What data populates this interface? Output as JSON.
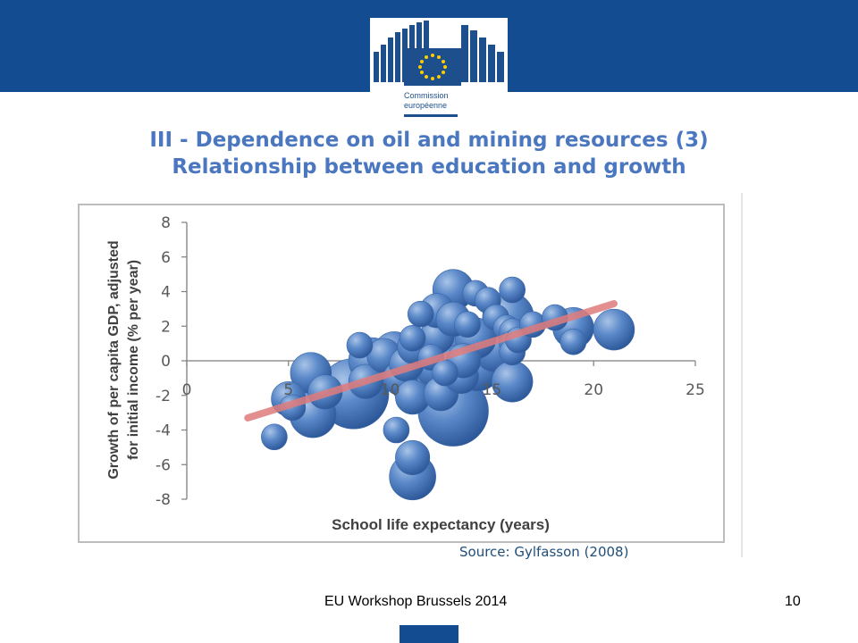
{
  "header": {
    "brand_color": "#134c91",
    "logo": {
      "line1": "Commission",
      "line2": "européenne"
    }
  },
  "title": {
    "line1": "III - Dependence on oil and mining resources (3)",
    "line2": "Relationship between education and growth"
  },
  "chart_data": {
    "type": "scatter",
    "xlabel": "School life expectancy (years)",
    "ylabel": "Growth of per capita GDP, adjusted for initial income (% per year)",
    "xlim": [
      0,
      25
    ],
    "ylim": [
      -8,
      8
    ],
    "x_ticks": [
      0,
      5,
      10,
      15,
      20,
      25
    ],
    "y_ticks": [
      8,
      6,
      4,
      2,
      0,
      -2,
      -4,
      -6,
      -8
    ],
    "grid": false,
    "bubble_color": "#4f81bd",
    "trendline": {
      "color": "#e07c7c",
      "x": [
        3,
        21
      ],
      "y": [
        -3.3,
        3.3
      ]
    },
    "points": [
      {
        "x": 4.3,
        "y": -4.4,
        "size": 1
      },
      {
        "x": 5,
        "y": -2.2,
        "size": 2
      },
      {
        "x": 5.2,
        "y": -2.7,
        "size": 1
      },
      {
        "x": 6.1,
        "y": -0.7,
        "size": 3
      },
      {
        "x": 6.2,
        "y": -3.1,
        "size": 4
      },
      {
        "x": 6.8,
        "y": -1.8,
        "size": 2
      },
      {
        "x": 8.2,
        "y": -1.9,
        "size": 10
      },
      {
        "x": 8.5,
        "y": 0.9,
        "size": 1
      },
      {
        "x": 8.8,
        "y": -1.2,
        "size": 2
      },
      {
        "x": 9.1,
        "y": 0,
        "size": 4
      },
      {
        "x": 9.7,
        "y": 0.3,
        "size": 2
      },
      {
        "x": 10,
        "y": -0.5,
        "size": 3
      },
      {
        "x": 10.2,
        "y": 0.5,
        "size": 3
      },
      {
        "x": 10.3,
        "y": -4,
        "size": 1
      },
      {
        "x": 10.5,
        "y": -1,
        "size": 2
      },
      {
        "x": 10.8,
        "y": -0.2,
        "size": 2
      },
      {
        "x": 11.2,
        "y": -1.3,
        "size": 4
      },
      {
        "x": 11.2,
        "y": 0.8,
        "size": 2
      },
      {
        "x": 11.1,
        "y": 1.3,
        "size": 1
      },
      {
        "x": 11.1,
        "y": -2.1,
        "size": 2
      },
      {
        "x": 11.1,
        "y": -5.6,
        "size": 2
      },
      {
        "x": 11.1,
        "y": -6.7,
        "size": 4
      },
      {
        "x": 11.5,
        "y": 2.7,
        "size": 1
      },
      {
        "x": 12,
        "y": 0.2,
        "size": 1
      },
      {
        "x": 12.2,
        "y": -0.3,
        "size": 3
      },
      {
        "x": 12.3,
        "y": 1.4,
        "size": 2
      },
      {
        "x": 12.3,
        "y": 2.9,
        "size": 2
      },
      {
        "x": 12.5,
        "y": -1.9,
        "size": 2
      },
      {
        "x": 12.7,
        "y": -0.7,
        "size": 1
      },
      {
        "x": 12.8,
        "y": 0.8,
        "size": 3
      },
      {
        "x": 13.1,
        "y": 2.4,
        "size": 2
      },
      {
        "x": 13.1,
        "y": 4.1,
        "size": 3
      },
      {
        "x": 13.1,
        "y": -2.9,
        "size": 10
      },
      {
        "x": 13.2,
        "y": -0.3,
        "size": 3
      },
      {
        "x": 13.5,
        "y": -0.9,
        "size": 2
      },
      {
        "x": 13.6,
        "y": 0,
        "size": 2
      },
      {
        "x": 13.8,
        "y": 2.1,
        "size": 1
      },
      {
        "x": 14.2,
        "y": 3.9,
        "size": 1
      },
      {
        "x": 14.2,
        "y": 1.3,
        "size": 3
      },
      {
        "x": 14.3,
        "y": -0.4,
        "size": 4
      },
      {
        "x": 14.8,
        "y": 3.5,
        "size": 1
      },
      {
        "x": 15.2,
        "y": 0.7,
        "size": 4
      },
      {
        "x": 15.2,
        "y": 2.5,
        "size": 1
      },
      {
        "x": 15.7,
        "y": 1.9,
        "size": 1
      },
      {
        "x": 15.8,
        "y": 2.5,
        "size": 5
      },
      {
        "x": 16,
        "y": 4.1,
        "size": 1
      },
      {
        "x": 16,
        "y": 1.7,
        "size": 1
      },
      {
        "x": 16,
        "y": 1,
        "size": 1
      },
      {
        "x": 16,
        "y": 0.5,
        "size": 1
      },
      {
        "x": 16,
        "y": -1.2,
        "size": 3
      },
      {
        "x": 16.3,
        "y": 1.2,
        "size": 1
      },
      {
        "x": 17,
        "y": 2.1,
        "size": 1
      },
      {
        "x": 18.1,
        "y": 2.5,
        "size": 1
      },
      {
        "x": 19,
        "y": 1.9,
        "size": 3
      },
      {
        "x": 19,
        "y": 1.1,
        "size": 1
      },
      {
        "x": 21,
        "y": 1.8,
        "size": 3
      }
    ]
  },
  "source": "Source: Gylfasson (2008)",
  "footer": {
    "text": "EU Workshop Brussels 2014",
    "page": "10"
  }
}
